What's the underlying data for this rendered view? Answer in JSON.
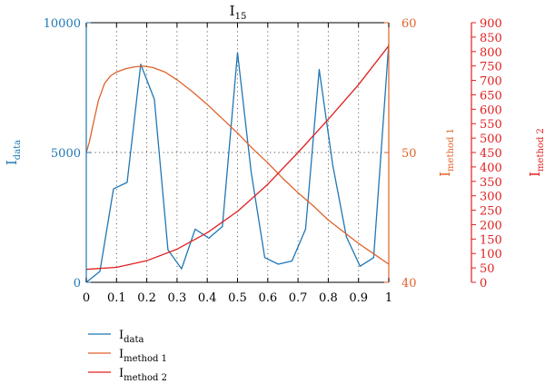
{
  "chart_data": {
    "type": "line",
    "title": {
      "main": "I",
      "sub": "15"
    },
    "x": {
      "range": [
        0,
        1
      ],
      "ticks": [
        0,
        0.1,
        0.2,
        0.3,
        0.4,
        0.5,
        0.6,
        0.7,
        0.8,
        0.9,
        1
      ],
      "tick_labels": [
        "0",
        "0.1",
        "0.2",
        "0.3",
        "0.4",
        "0.5",
        "0.6",
        "0.7",
        "0.8",
        "0.9",
        "1"
      ]
    },
    "axes": {
      "left": {
        "label": {
          "main": "I",
          "sub": "data"
        },
        "range": [
          0,
          10000
        ],
        "ticks": [
          0,
          5000,
          10000
        ],
        "tick_labels": [
          "0",
          "5000",
          "10000"
        ],
        "color": "#1f77b4"
      },
      "right1": {
        "label": {
          "main": "I",
          "sub": "method 1"
        },
        "range": [
          40,
          60
        ],
        "ticks": [
          40,
          50,
          60
        ],
        "tick_labels": [
          "40",
          "50",
          "60"
        ],
        "color": "#e0622a"
      },
      "right2": {
        "label": {
          "main": "I",
          "sub": "method 2"
        },
        "range": [
          0,
          900
        ],
        "ticks": [
          0,
          50,
          100,
          150,
          200,
          250,
          300,
          350,
          400,
          450,
          500,
          550,
          600,
          650,
          700,
          750,
          800,
          850,
          900
        ],
        "tick_labels": [
          "0",
          "50",
          "100",
          "150",
          "200",
          "250",
          "300",
          "350",
          "400",
          "450",
          "500",
          "550",
          "600",
          "650",
          "700",
          "750",
          "800",
          "850",
          "900"
        ],
        "color": "#e02020"
      }
    },
    "grid": "vertical dotted at x ticks, horizontal dotted at left-axis 5000",
    "legend": {
      "placement": "bottom-left"
    },
    "series": [
      {
        "name": {
          "main": "I",
          "sub": "data"
        },
        "axis": "left",
        "color": "#1f77b4",
        "points": [
          [
            0,
            0
          ],
          [
            0.045,
            420
          ],
          [
            0.09,
            3600
          ],
          [
            0.135,
            3850
          ],
          [
            0.18,
            8400
          ],
          [
            0.225,
            7050
          ],
          [
            0.27,
            1250
          ],
          [
            0.315,
            520
          ],
          [
            0.36,
            2050
          ],
          [
            0.405,
            1700
          ],
          [
            0.45,
            2150
          ],
          [
            0.5,
            8850
          ],
          [
            0.545,
            4250
          ],
          [
            0.59,
            950
          ],
          [
            0.635,
            700
          ],
          [
            0.68,
            820
          ],
          [
            0.725,
            2050
          ],
          [
            0.77,
            8200
          ],
          [
            0.815,
            4500
          ],
          [
            0.86,
            1750
          ],
          [
            0.905,
            620
          ],
          [
            0.95,
            950
          ],
          [
            1,
            9200
          ]
        ]
      },
      {
        "name": {
          "main": "I",
          "sub": "method 1"
        },
        "axis": "right1",
        "color": "#e0622a",
        "points": [
          [
            0,
            50.0
          ],
          [
            0.01,
            50.8
          ],
          [
            0.02,
            51.9
          ],
          [
            0.04,
            54.0
          ],
          [
            0.06,
            55.3
          ],
          [
            0.08,
            55.9
          ],
          [
            0.1,
            56.2
          ],
          [
            0.13,
            56.45
          ],
          [
            0.16,
            56.6
          ],
          [
            0.19,
            56.65
          ],
          [
            0.22,
            56.55
          ],
          [
            0.26,
            56.2
          ],
          [
            0.3,
            55.6
          ],
          [
            0.35,
            54.7
          ],
          [
            0.4,
            53.7
          ],
          [
            0.45,
            52.6
          ],
          [
            0.5,
            51.5
          ],
          [
            0.55,
            50.3
          ],
          [
            0.6,
            49.2
          ],
          [
            0.65,
            48.0
          ],
          [
            0.7,
            46.9
          ],
          [
            0.75,
            45.9
          ],
          [
            0.8,
            44.8
          ],
          [
            0.85,
            43.9
          ],
          [
            0.9,
            43.0
          ],
          [
            0.95,
            42.2
          ],
          [
            1,
            41.4
          ]
        ]
      },
      {
        "name": {
          "main": "I",
          "sub": "method 2"
        },
        "axis": "right2",
        "color": "#e02020",
        "points": [
          [
            0,
            45
          ],
          [
            0.1,
            52
          ],
          [
            0.2,
            75
          ],
          [
            0.3,
            115
          ],
          [
            0.4,
            172
          ],
          [
            0.5,
            246
          ],
          [
            0.6,
            340
          ],
          [
            0.7,
            450
          ],
          [
            0.8,
            565
          ],
          [
            0.9,
            685
          ],
          [
            1,
            820
          ]
        ]
      }
    ]
  }
}
